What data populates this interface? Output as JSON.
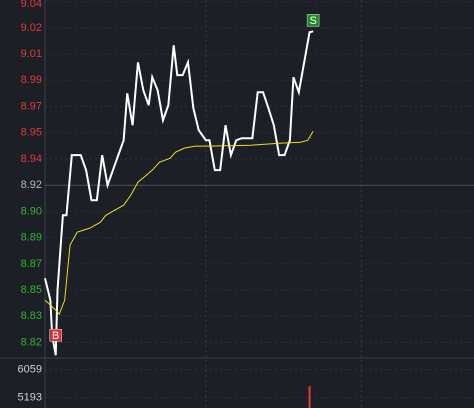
{
  "chart_data": {
    "type": "intraday",
    "price": {
      "xlim": [
        0,
        240
      ],
      "xgrid": [
        90,
        177
      ],
      "ylim": [
        8.81,
        9.041
      ],
      "yticks": [
        {
          "value": 9.0399,
          "label": "9.04"
        },
        {
          "value": 9.023,
          "label": "9.02"
        },
        {
          "value": 9.0061,
          "label": "9.01"
        },
        {
          "value": 8.9892,
          "label": "8.99"
        },
        {
          "value": 8.9723,
          "label": "8.97"
        },
        {
          "value": 8.9553,
          "label": "8.95"
        },
        {
          "value": 8.9384,
          "label": "8.94"
        },
        {
          "value": 8.9215,
          "label": "8.92"
        },
        {
          "value": 8.9046,
          "label": "8.90"
        },
        {
          "value": 8.8877,
          "label": "8.89"
        },
        {
          "value": 8.8707,
          "label": "8.87"
        },
        {
          "value": 8.8538,
          "label": "8.85"
        },
        {
          "value": 8.8369,
          "label": "8.83"
        },
        {
          "value": 8.82,
          "label": "8.82"
        }
      ],
      "up_color": "#e03b3b",
      "down_color": "#2fb52f",
      "flat_color": "#b8b8b8",
      "series": [
        {
          "color": "#ffffff",
          "x": [
            0,
            3,
            4,
            6,
            7,
            10,
            12,
            15,
            20,
            23,
            26,
            29,
            32,
            35,
            38,
            41,
            44,
            46,
            49,
            52,
            55,
            58,
            60,
            63,
            66,
            69,
            72,
            74,
            77,
            80,
            83,
            86,
            90,
            92,
            95,
            98,
            101,
            104,
            107,
            110,
            112,
            116,
            119,
            122,
            125,
            128,
            131,
            134,
            137,
            139,
            142,
            145,
            148,
            150
          ],
          "values": [
            8.8615,
            8.8473,
            8.8247,
            8.8118,
            8.8538,
            8.9021,
            8.9021,
            8.9409,
            8.9409,
            8.9312,
            8.9118,
            8.9118,
            8.9409,
            8.9215,
            8.9312,
            8.9409,
            8.9505,
            8.9808,
            8.9602,
            9.0008,
            8.9828,
            8.9731,
            8.9912,
            8.9828,
            8.9634,
            8.9731,
            9.0118,
            8.9925,
            8.9925,
            9.0008,
            8.9712,
            8.957,
            8.9505,
            8.9505,
            8.9312,
            8.9312,
            8.9602,
            8.9409,
            8.9505,
            8.9518,
            8.9518,
            8.9518,
            8.9815,
            8.9815,
            8.9712,
            8.9602,
            8.9409,
            8.9409,
            8.9505,
            8.9912,
            8.9815,
            9.0008,
            9.0202,
            9.0208
          ]
        },
        {
          "color": "#e8e020",
          "x": [
            0,
            6,
            8,
            11,
            14,
            18,
            25,
            31,
            34,
            39,
            44,
            48,
            52,
            56,
            60,
            64,
            70,
            73,
            78,
            84,
            92,
            115,
            131,
            143,
            147,
            150
          ],
          "values": [
            8.8473,
            8.8409,
            8.8383,
            8.8473,
            8.8828,
            8.8912,
            8.8938,
            8.8976,
            8.9021,
            8.9054,
            8.9086,
            8.9151,
            8.9234,
            8.9273,
            8.9312,
            8.9363,
            8.9389,
            8.9428,
            8.9454,
            8.9467,
            8.9467,
            8.9473,
            8.9486,
            8.9492,
            8.9505,
            8.9563
          ]
        }
      ],
      "annotations": [
        {
          "text": "B",
          "x": 6,
          "price": 8.8247,
          "color": "#d83030"
        },
        {
          "text": "S",
          "x": 150,
          "price": 9.0279,
          "color": "#1f8a2a"
        }
      ]
    },
    "volume": {
      "ylim": [
        4872,
        6412
      ],
      "yticks": [
        6059,
        5193
      ],
      "color": "#e03b3b",
      "x": [
        148
      ],
      "values": [
        5546
      ]
    }
  }
}
